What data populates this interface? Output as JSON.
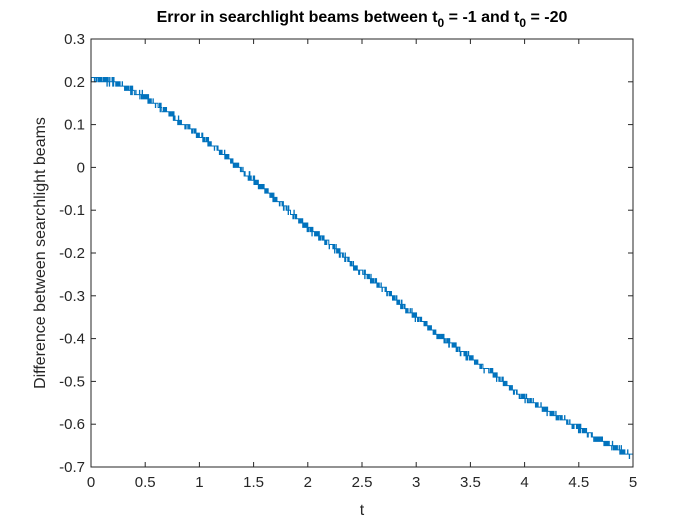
{
  "chart_data": {
    "type": "line",
    "title_parts": [
      "Error in searchlight beams between t",
      "0",
      " = -1 and t",
      "0",
      " = -20"
    ],
    "xlabel": "t",
    "ylabel": "Difference between searchlight beams",
    "xlim": [
      0,
      5
    ],
    "ylim": [
      -0.7,
      0.3
    ],
    "xticks": [
      0,
      0.5,
      1,
      1.5,
      2,
      2.5,
      3,
      3.5,
      4,
      4.5,
      5
    ],
    "xtick_labels": [
      "0",
      "0.5",
      "1",
      "1.5",
      "2",
      "2.5",
      "3",
      "3.5",
      "4",
      "4.5",
      "5"
    ],
    "yticks": [
      -0.7,
      -0.6,
      -0.5,
      -0.4,
      -0.3,
      -0.2,
      -0.1,
      0,
      0.1,
      0.2,
      0.3
    ],
    "ytick_labels": [
      "-0.7",
      "-0.6",
      "-0.5",
      "-0.4",
      "-0.3",
      "-0.2",
      "-0.1",
      "0",
      "0.1",
      "0.2",
      "0.3"
    ],
    "grid": false,
    "series": [
      {
        "color": "#0072BD",
        "quantization_step": 0.01,
        "x": [
          0,
          0.25,
          0.5,
          0.75,
          1,
          1.25,
          1.5,
          1.75,
          2,
          2.25,
          2.5,
          2.75,
          3,
          3.25,
          3.5,
          3.75,
          4,
          4.25,
          4.5,
          4.75,
          5
        ],
        "y": [
          0.21,
          0.195,
          0.165,
          0.12,
          0.075,
          0.025,
          -0.03,
          -0.085,
          -0.14,
          -0.19,
          -0.245,
          -0.295,
          -0.35,
          -0.4,
          -0.445,
          -0.49,
          -0.54,
          -0.575,
          -0.61,
          -0.645,
          -0.675
        ]
      }
    ]
  }
}
